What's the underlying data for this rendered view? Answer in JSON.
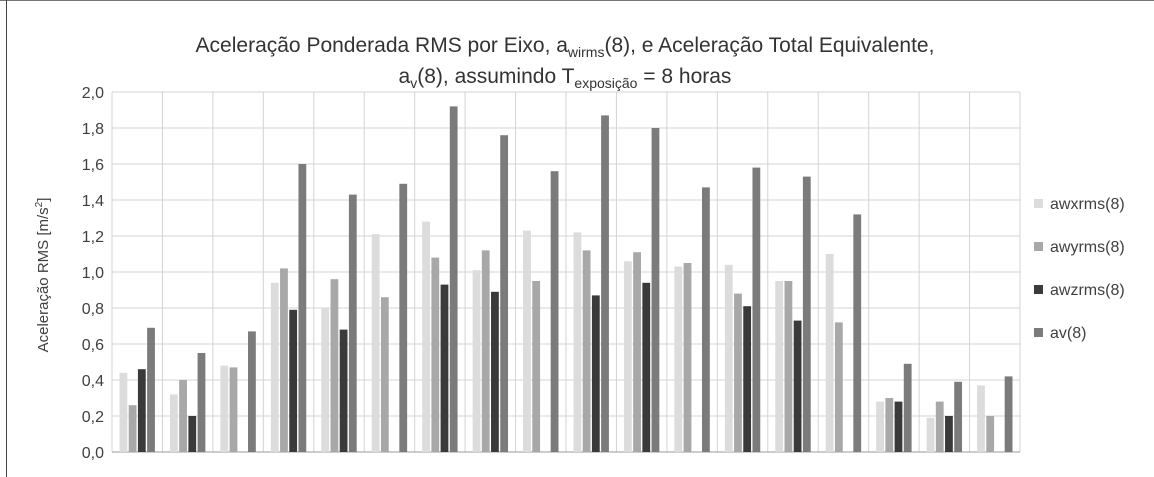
{
  "chart_data": {
    "type": "bar",
    "title": {
      "line1": {
        "main": "Aceleração Ponderada RMS por Eixo, a",
        "sub": "wirms",
        "after": "(8), e Aceleração Total Equivalente,"
      },
      "line2": {
        "a": "a",
        "sub1": "v",
        "mid": "(8), assumindo T",
        "sub2": "exposição",
        "end": " = 8 horas"
      }
    },
    "ylabel": {
      "main": "Aceleração RMS [m/s",
      "sup": "2",
      "end": "]"
    },
    "ylim": [
      0,
      2.0
    ],
    "yticks": [
      "0,0",
      "0,2",
      "0,4",
      "0,6",
      "0,8",
      "1,0",
      "1,2",
      "1,4",
      "1,6",
      "1,8",
      "2,0"
    ],
    "grid": true,
    "legend_position": "right",
    "categories": [
      "",
      "",
      "",
      "",
      "",
      "",
      "",
      "",
      "",
      "",
      "",
      "",
      "",
      "",
      "",
      "",
      "",
      ""
    ],
    "series": [
      {
        "name": "awxrms(8)",
        "color": "#dcdcdc",
        "values": [
          0.44,
          0.32,
          0.48,
          0.94,
          0.8,
          1.21,
          1.28,
          1.01,
          1.23,
          1.22,
          1.06,
          1.03,
          1.04,
          0.95,
          1.1,
          0.28,
          0.19,
          0.37
        ]
      },
      {
        "name": "awyrms(8)",
        "color": "#a8a8a8",
        "values": [
          0.26,
          0.4,
          0.47,
          1.02,
          0.96,
          0.86,
          1.08,
          1.12,
          0.95,
          1.12,
          1.11,
          1.05,
          0.88,
          0.95,
          0.72,
          0.3,
          0.28,
          0.2
        ]
      },
      {
        "name": "awzrms(8)",
        "color": "#3a3a3a",
        "values": [
          0.46,
          0.2,
          0.0,
          0.79,
          0.68,
          0.0,
          0.93,
          0.89,
          0.0,
          0.87,
          0.94,
          0.0,
          0.81,
          0.73,
          0.0,
          0.28,
          0.2,
          0.0
        ]
      },
      {
        "name": "av(8)",
        "color": "#7b7b7b",
        "values": [
          0.69,
          0.55,
          0.67,
          1.6,
          1.43,
          1.49,
          1.92,
          1.76,
          1.56,
          1.87,
          1.8,
          1.47,
          1.58,
          1.53,
          1.32,
          0.49,
          0.39,
          0.42
        ]
      }
    ]
  }
}
